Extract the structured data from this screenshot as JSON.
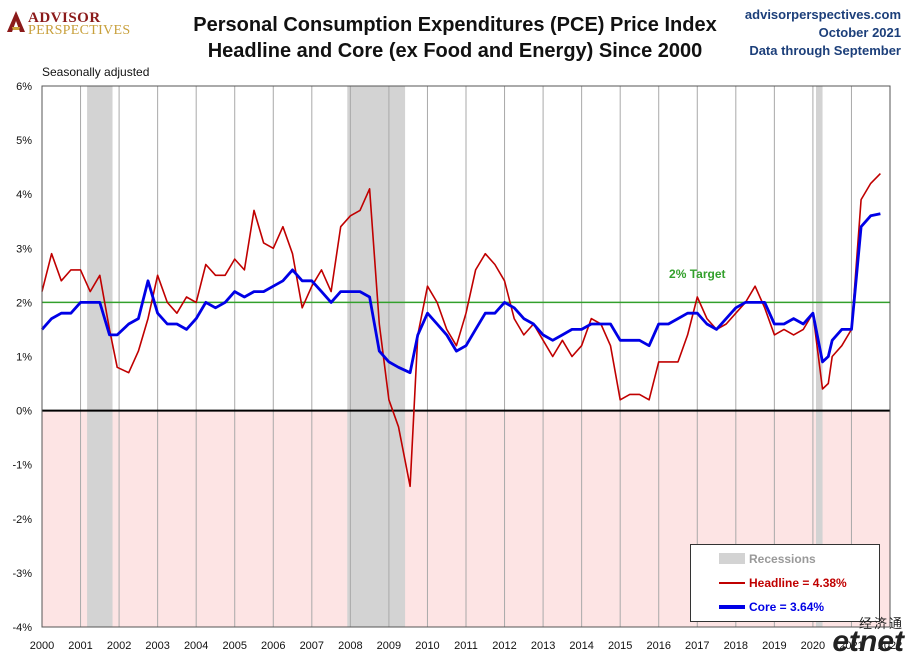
{
  "branding": {
    "logo_line1": "ADVISOR",
    "logo_line2": "PERSPECTIVES",
    "source_site": "advisorperspectives.com",
    "source_date": "October 2021",
    "source_note": "Data through September",
    "watermark_top": "经济通",
    "watermark_bottom": "etnet"
  },
  "colors": {
    "headline": "#c00000",
    "core": "#0000e6",
    "target": "#33a02c",
    "recession": "#d3d3d3",
    "negative_zone": "#fde4e4",
    "zero_line": "#000000"
  },
  "chart_data": {
    "type": "line",
    "title": "Personal Consumption Expenditures (PCE) Price Index",
    "subtitle": "Headline and Core (ex Food and Energy) Since 2000",
    "note": "Seasonally adjusted",
    "xlabel": "",
    "ylabel": "",
    "xlim": [
      2000.0,
      2022.0
    ],
    "ylim": [
      -4,
      6
    ],
    "y_ticks": [
      6,
      5,
      4,
      3,
      2,
      1,
      0,
      -1,
      -2,
      -3,
      -4
    ],
    "y_tick_labels": [
      "6%",
      "5%",
      "4%",
      "3%",
      "2%",
      "1%",
      "0%",
      "-1%",
      "-2%",
      "-3%",
      "-4%"
    ],
    "x_ticks": [
      2000,
      2001,
      2002,
      2003,
      2004,
      2005,
      2006,
      2007,
      2008,
      2009,
      2010,
      2011,
      2012,
      2013,
      2014,
      2015,
      2016,
      2017,
      2018,
      2019,
      2020,
      2021,
      2022
    ],
    "x_tick_labels": [
      "2000",
      "2001",
      "2002",
      "2003",
      "2004",
      "2005",
      "2006",
      "2007",
      "2008",
      "2009",
      "2010",
      "2011",
      "2012",
      "2013",
      "2014",
      "2015",
      "2016",
      "2017",
      "2018",
      "2019",
      "2020",
      "2021",
      "2022"
    ],
    "grid": "vertical",
    "legend_position": "bottom-right",
    "recessions": [
      {
        "start": 2001.17,
        "end": 2001.83
      },
      {
        "start": 2007.92,
        "end": 2009.42
      },
      {
        "start": 2020.08,
        "end": 2020.25
      }
    ],
    "legend": {
      "recessions_label": "Recessions",
      "headline_label": "Headline = 4.38%",
      "core_label": "Core = 3.64%"
    },
    "annotation": {
      "text": "2% Target",
      "x": 2017.0,
      "y": 2.25
    },
    "target_value": 2.0,
    "zero_value": 0.0,
    "series": [
      {
        "name": "Headline",
        "x": [
          2000.0,
          2000.25,
          2000.5,
          2000.75,
          2001.0,
          2001.25,
          2001.5,
          2001.75,
          2001.95,
          2002.25,
          2002.5,
          2002.75,
          2003.0,
          2003.25,
          2003.5,
          2003.75,
          2004.0,
          2004.25,
          2004.5,
          2004.75,
          2005.0,
          2005.25,
          2005.5,
          2005.75,
          2006.0,
          2006.25,
          2006.5,
          2006.75,
          2007.0,
          2007.25,
          2007.5,
          2007.75,
          2008.0,
          2008.25,
          2008.5,
          2008.75,
          2009.0,
          2009.25,
          2009.55,
          2009.75,
          2010.0,
          2010.25,
          2010.5,
          2010.75,
          2011.0,
          2011.25,
          2011.5,
          2011.75,
          2012.0,
          2012.25,
          2012.5,
          2012.75,
          2013.0,
          2013.25,
          2013.5,
          2013.75,
          2014.0,
          2014.25,
          2014.5,
          2014.75,
          2015.0,
          2015.25,
          2015.5,
          2015.75,
          2016.0,
          2016.25,
          2016.5,
          2016.75,
          2017.0,
          2017.25,
          2017.5,
          2017.75,
          2018.0,
          2018.25,
          2018.5,
          2018.75,
          2019.0,
          2019.25,
          2019.5,
          2019.75,
          2020.0,
          2020.25,
          2020.4,
          2020.5,
          2020.75,
          2021.0,
          2021.25,
          2021.5,
          2021.75
        ],
        "values": [
          2.2,
          2.9,
          2.4,
          2.6,
          2.6,
          2.2,
          2.5,
          1.5,
          0.8,
          0.7,
          1.1,
          1.7,
          2.5,
          2.0,
          1.8,
          2.1,
          2.0,
          2.7,
          2.5,
          2.5,
          2.8,
          2.6,
          3.7,
          3.1,
          3.0,
          3.4,
          2.9,
          1.9,
          2.3,
          2.6,
          2.2,
          3.4,
          3.6,
          3.7,
          4.1,
          1.6,
          0.2,
          -0.3,
          -1.4,
          1.4,
          2.3,
          2.0,
          1.5,
          1.2,
          1.8,
          2.6,
          2.9,
          2.7,
          2.4,
          1.7,
          1.4,
          1.6,
          1.3,
          1.0,
          1.3,
          1.0,
          1.2,
          1.7,
          1.6,
          1.2,
          0.2,
          0.3,
          0.3,
          0.2,
          0.9,
          0.9,
          0.9,
          1.4,
          2.1,
          1.7,
          1.5,
          1.6,
          1.8,
          2.0,
          2.3,
          1.9,
          1.4,
          1.5,
          1.4,
          1.5,
          1.8,
          0.4,
          0.5,
          1.0,
          1.2,
          1.5,
          3.9,
          4.2,
          4.38
        ]
      },
      {
        "name": "Core",
        "x": [
          2000.0,
          2000.25,
          2000.5,
          2000.75,
          2001.0,
          2001.25,
          2001.5,
          2001.75,
          2001.95,
          2002.25,
          2002.5,
          2002.75,
          2003.0,
          2003.25,
          2003.5,
          2003.75,
          2004.0,
          2004.25,
          2004.5,
          2004.75,
          2005.0,
          2005.25,
          2005.5,
          2005.75,
          2006.0,
          2006.25,
          2006.5,
          2006.75,
          2007.0,
          2007.25,
          2007.5,
          2007.75,
          2008.0,
          2008.25,
          2008.5,
          2008.75,
          2009.0,
          2009.25,
          2009.55,
          2009.75,
          2010.0,
          2010.25,
          2010.5,
          2010.75,
          2011.0,
          2011.25,
          2011.5,
          2011.75,
          2012.0,
          2012.25,
          2012.5,
          2012.75,
          2013.0,
          2013.25,
          2013.5,
          2013.75,
          2014.0,
          2014.25,
          2014.5,
          2014.75,
          2015.0,
          2015.25,
          2015.5,
          2015.75,
          2016.0,
          2016.25,
          2016.5,
          2016.75,
          2017.0,
          2017.25,
          2017.5,
          2017.75,
          2018.0,
          2018.25,
          2018.5,
          2018.75,
          2019.0,
          2019.25,
          2019.5,
          2019.75,
          2020.0,
          2020.25,
          2020.4,
          2020.5,
          2020.75,
          2021.0,
          2021.25,
          2021.5,
          2021.75
        ],
        "values": [
          1.5,
          1.7,
          1.8,
          1.8,
          2.0,
          2.0,
          2.0,
          1.4,
          1.4,
          1.6,
          1.7,
          2.4,
          1.8,
          1.6,
          1.6,
          1.5,
          1.7,
          2.0,
          1.9,
          2.0,
          2.2,
          2.1,
          2.2,
          2.2,
          2.3,
          2.4,
          2.6,
          2.4,
          2.4,
          2.2,
          2.0,
          2.2,
          2.2,
          2.2,
          2.1,
          1.1,
          0.9,
          0.8,
          0.7,
          1.4,
          1.8,
          1.6,
          1.4,
          1.1,
          1.2,
          1.5,
          1.8,
          1.8,
          2.0,
          1.9,
          1.7,
          1.6,
          1.4,
          1.3,
          1.4,
          1.5,
          1.5,
          1.6,
          1.6,
          1.6,
          1.3,
          1.3,
          1.3,
          1.2,
          1.6,
          1.6,
          1.7,
          1.8,
          1.8,
          1.6,
          1.5,
          1.7,
          1.9,
          2.0,
          2.0,
          2.0,
          1.6,
          1.6,
          1.7,
          1.6,
          1.8,
          0.9,
          1.0,
          1.3,
          1.5,
          1.5,
          3.4,
          3.6,
          3.64
        ]
      }
    ]
  }
}
